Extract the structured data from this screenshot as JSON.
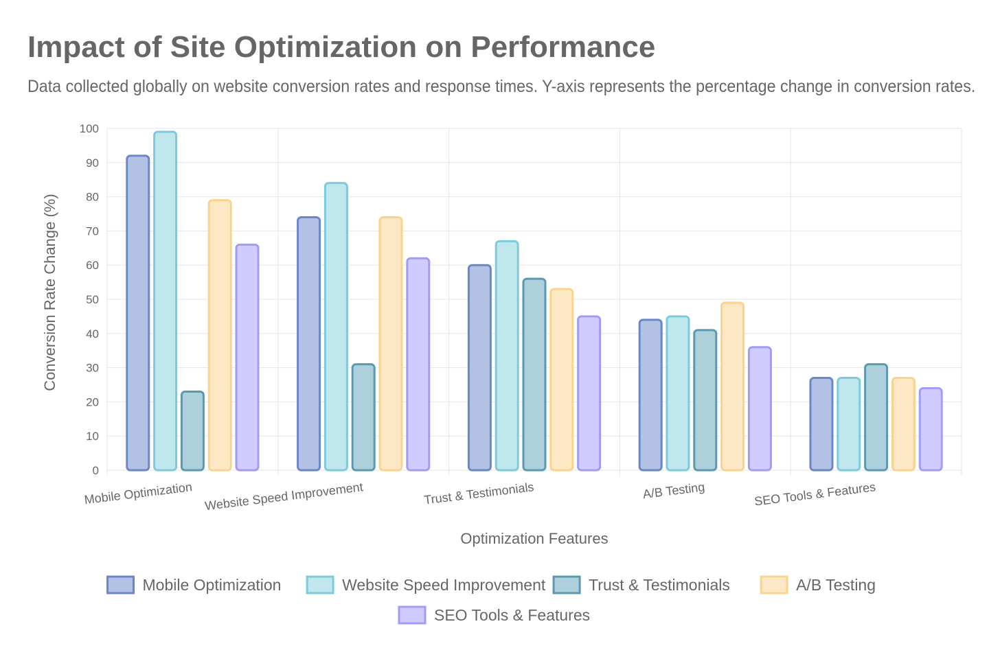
{
  "chart_data": {
    "type": "bar",
    "title": "Impact of Site Optimization on Performance",
    "subtitle": "Data collected globally on website conversion rates and response times. Y-axis represents the percentage change in conversion rates.",
    "xlabel": "Optimization Features",
    "ylabel": "Conversion Rate Change (%)",
    "ylim": [
      0,
      100
    ],
    "yticks": [
      0,
      10,
      20,
      30,
      40,
      50,
      60,
      70,
      80,
      90,
      100
    ],
    "grid": true,
    "legend_position": "bottom",
    "categories": [
      "Mobile Optimization",
      "Website Speed Improvement",
      "Trust & Testimonials",
      "A/B Testing",
      "SEO Tools & Features"
    ],
    "series": [
      {
        "name": "Mobile Optimization",
        "values": [
          92,
          74,
          60,
          44,
          27
        ],
        "fill": "#b3c1e5",
        "stroke": "#6a87c9"
      },
      {
        "name": "Website Speed Improvement",
        "values": [
          99,
          84,
          67,
          45,
          27
        ],
        "fill": "#c0e6ee",
        "stroke": "#7ccbdc"
      },
      {
        "name": "Trust & Testimonials",
        "values": [
          23,
          31,
          56,
          41,
          31
        ],
        "fill": "#aecfdc",
        "stroke": "#5a9ab0"
      },
      {
        "name": "A/B Testing",
        "values": [
          79,
          74,
          53,
          49,
          27
        ],
        "fill": "#fde8c6",
        "stroke": "#fad38d"
      },
      {
        "name": "SEO Tools & Features",
        "values": [
          66,
          62,
          45,
          36,
          24
        ],
        "fill": "#d0ccff",
        "stroke": "#a29bf7"
      }
    ]
  }
}
